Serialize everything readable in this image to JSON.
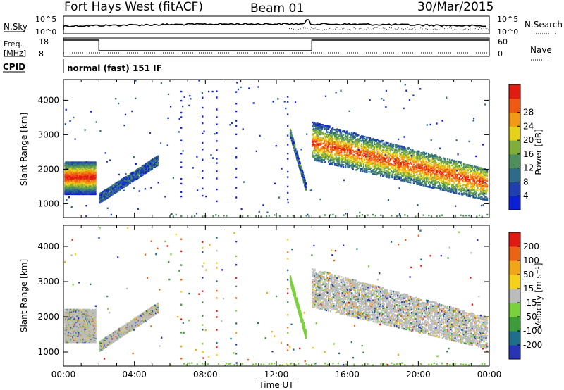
{
  "header": {
    "title": "Fort Hays West (fitACF)",
    "beam": "Beam 01",
    "date": "30/Mar/2015"
  },
  "strips": {
    "nsky_label": "N.Sky",
    "nsky_ticks": [
      "10^5",
      "10^0"
    ],
    "nsearch_label": "N.Search",
    "nsearch_ticks": [
      "10^5",
      "10^0"
    ],
    "freq_label_1": "Freq.",
    "freq_label_2": "[MHz]",
    "freq_ticks": [
      "18",
      "8"
    ],
    "nave_label": "Nave",
    "nave_ticks": [
      "60",
      "0"
    ],
    "cpid_label": "CPID",
    "cpid_text": "normal (fast) 151 IF"
  },
  "colors": {
    "power": [
      "#0b1fd6",
      "#1f3fb0",
      "#2e6b8a",
      "#4f8f5c",
      "#7fae39",
      "#e6d21a",
      "#f29a16",
      "#ee5a12",
      "#e21b12"
    ],
    "velocity": [
      "#2634b5",
      "#1f6e8c",
      "#3d9b3a",
      "#7bd13c",
      "#bcbcbc",
      "#f5d21a",
      "#f0a616",
      "#ea6414",
      "#e01a12"
    ]
  },
  "chart_data": [
    {
      "type": "heatmap",
      "name": "power",
      "ylabel": "Slant Range [km]",
      "y_ticks": [
        1000,
        2000,
        3000,
        4000
      ],
      "ylim": [
        600,
        4600
      ],
      "x_ticks": [
        "00:00",
        "04:00",
        "08:00",
        "12:00",
        "16:00",
        "20:00",
        "00:00"
      ],
      "xlim_hours": [
        0,
        24
      ],
      "colorbar_label": "Power [dB]",
      "colorbar_ticks": [
        "4",
        "8",
        "12",
        "16",
        "20",
        "24",
        "28"
      ]
    },
    {
      "type": "heatmap",
      "name": "velocity",
      "ylabel": "Slant Range [km]",
      "y_ticks": [
        1000,
        2000,
        3000,
        4000
      ],
      "ylim": [
        600,
        4600
      ],
      "x_ticks": [
        "00:00",
        "04:00",
        "08:00",
        "12:00",
        "16:00",
        "20:00",
        "00:00"
      ],
      "xlim_hours": [
        0,
        24
      ],
      "xlabel": "Time UT",
      "colorbar_label": "Velocity [m s⁻¹]",
      "colorbar_ticks": [
        "200",
        "100",
        "50",
        "15",
        "-15",
        "-50",
        "-100",
        "-200"
      ]
    }
  ]
}
